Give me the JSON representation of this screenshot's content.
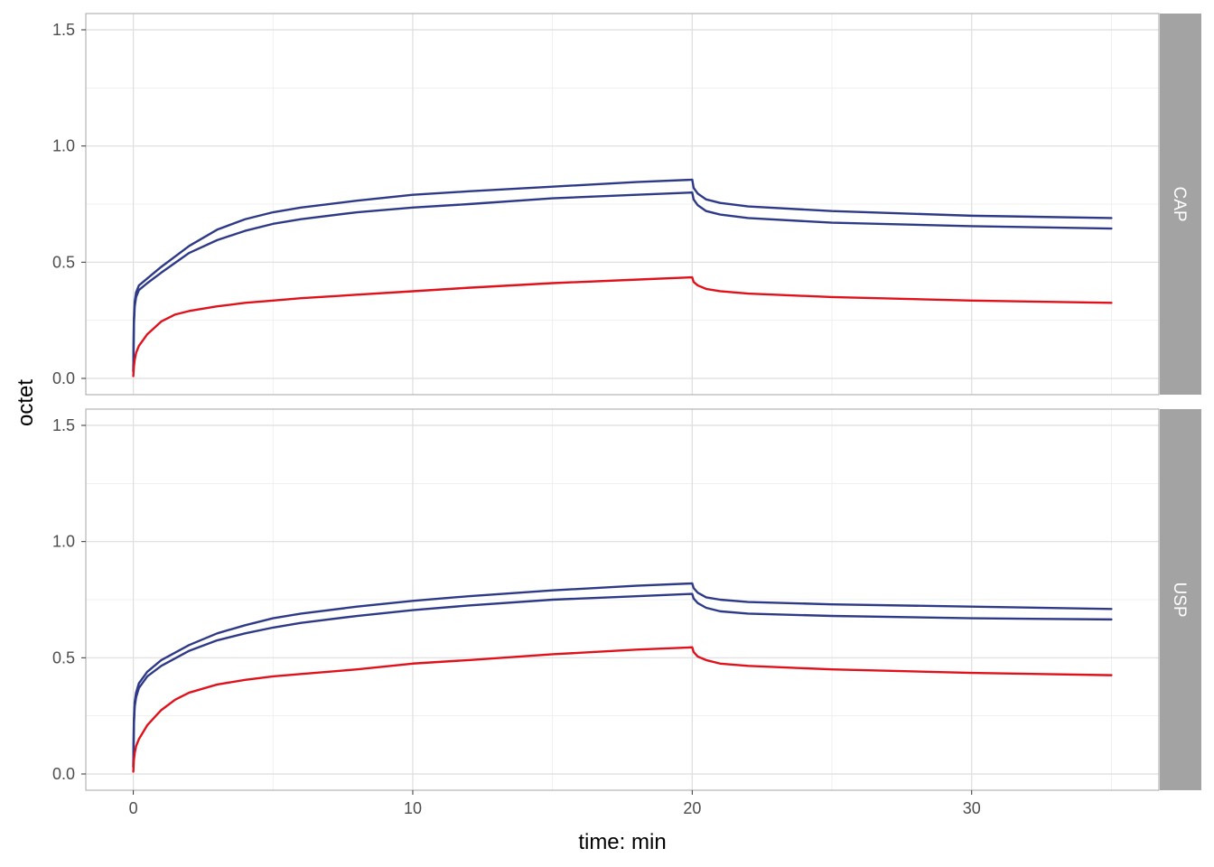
{
  "chart_data": {
    "type": "line",
    "xlabel": "time: min",
    "ylabel": "octet",
    "xlim": [
      -1.7,
      36.7
    ],
    "ylim": [
      -0.07,
      1.57
    ],
    "x_ticks": [
      0,
      10,
      20,
      30
    ],
    "y_ticks": [
      0.0,
      0.5,
      1.0,
      1.5
    ],
    "x_tick_labels": [
      "0",
      "10",
      "20",
      "30"
    ],
    "y_tick_labels": [
      "0.0",
      "0.5",
      "1.0",
      "1.5"
    ],
    "grid": true,
    "colors": {
      "blue": "#2e3a87",
      "red": "#e0111b",
      "strip": "#a3a3a3",
      "panel_border": "#b3b3b3",
      "grid": "#dedede"
    },
    "panels": [
      {
        "strip": "CAP",
        "series": [
          {
            "color": "#2e3a87",
            "values": [
              [
                0,
                0.03
              ],
              [
                0.02,
                0.25
              ],
              [
                0.05,
                0.33
              ],
              [
                0.1,
                0.37
              ],
              [
                0.2,
                0.4
              ],
              [
                0.5,
                0.43
              ],
              [
                1,
                0.48
              ],
              [
                2,
                0.57
              ],
              [
                3,
                0.64
              ],
              [
                4,
                0.685
              ],
              [
                5,
                0.715
              ],
              [
                6,
                0.735
              ],
              [
                8,
                0.765
              ],
              [
                10,
                0.79
              ],
              [
                12,
                0.805
              ],
              [
                15,
                0.825
              ],
              [
                18,
                0.845
              ],
              [
                20,
                0.855
              ],
              [
                20.05,
                0.82
              ],
              [
                20.2,
                0.795
              ],
              [
                20.5,
                0.77
              ],
              [
                21,
                0.755
              ],
              [
                22,
                0.74
              ],
              [
                25,
                0.72
              ],
              [
                30,
                0.7
              ],
              [
                35,
                0.69
              ]
            ]
          },
          {
            "color": "#2e3a87",
            "values": [
              [
                0,
                0.03
              ],
              [
                0.02,
                0.23
              ],
              [
                0.05,
                0.31
              ],
              [
                0.1,
                0.35
              ],
              [
                0.2,
                0.38
              ],
              [
                0.5,
                0.41
              ],
              [
                1,
                0.455
              ],
              [
                2,
                0.54
              ],
              [
                3,
                0.595
              ],
              [
                4,
                0.635
              ],
              [
                5,
                0.665
              ],
              [
                6,
                0.685
              ],
              [
                8,
                0.715
              ],
              [
                10,
                0.735
              ],
              [
                12,
                0.75
              ],
              [
                15,
                0.775
              ],
              [
                18,
                0.79
              ],
              [
                20,
                0.8
              ],
              [
                20.05,
                0.77
              ],
              [
                20.2,
                0.745
              ],
              [
                20.5,
                0.72
              ],
              [
                21,
                0.705
              ],
              [
                22,
                0.69
              ],
              [
                25,
                0.67
              ],
              [
                30,
                0.655
              ],
              [
                35,
                0.645
              ]
            ]
          },
          {
            "color": "#e0111b",
            "values": [
              [
                0,
                0.01
              ],
              [
                0.02,
                0.05
              ],
              [
                0.05,
                0.08
              ],
              [
                0.1,
                0.11
              ],
              [
                0.2,
                0.14
              ],
              [
                0.5,
                0.19
              ],
              [
                1,
                0.245
              ],
              [
                1.5,
                0.275
              ],
              [
                2,
                0.29
              ],
              [
                3,
                0.31
              ],
              [
                4,
                0.325
              ],
              [
                5,
                0.335
              ],
              [
                6,
                0.345
              ],
              [
                8,
                0.36
              ],
              [
                10,
                0.375
              ],
              [
                12,
                0.39
              ],
              [
                15,
                0.41
              ],
              [
                18,
                0.425
              ],
              [
                20,
                0.435
              ],
              [
                20.05,
                0.415
              ],
              [
                20.2,
                0.4
              ],
              [
                20.5,
                0.385
              ],
              [
                21,
                0.375
              ],
              [
                22,
                0.365
              ],
              [
                25,
                0.35
              ],
              [
                30,
                0.335
              ],
              [
                35,
                0.325
              ]
            ]
          }
        ]
      },
      {
        "strip": "USP",
        "series": [
          {
            "color": "#2e3a87",
            "values": [
              [
                0,
                0.03
              ],
              [
                0.02,
                0.23
              ],
              [
                0.05,
                0.31
              ],
              [
                0.1,
                0.35
              ],
              [
                0.2,
                0.39
              ],
              [
                0.5,
                0.44
              ],
              [
                1,
                0.49
              ],
              [
                2,
                0.555
              ],
              [
                3,
                0.605
              ],
              [
                4,
                0.64
              ],
              [
                5,
                0.67
              ],
              [
                6,
                0.69
              ],
              [
                8,
                0.72
              ],
              [
                10,
                0.745
              ],
              [
                12,
                0.765
              ],
              [
                15,
                0.79
              ],
              [
                18,
                0.81
              ],
              [
                20,
                0.82
              ],
              [
                20.05,
                0.8
              ],
              [
                20.2,
                0.78
              ],
              [
                20.5,
                0.76
              ],
              [
                21,
                0.75
              ],
              [
                22,
                0.74
              ],
              [
                25,
                0.73
              ],
              [
                30,
                0.72
              ],
              [
                35,
                0.71
              ]
            ]
          },
          {
            "color": "#2e3a87",
            "values": [
              [
                0,
                0.03
              ],
              [
                0.02,
                0.21
              ],
              [
                0.05,
                0.29
              ],
              [
                0.1,
                0.33
              ],
              [
                0.2,
                0.37
              ],
              [
                0.5,
                0.42
              ],
              [
                1,
                0.465
              ],
              [
                2,
                0.53
              ],
              [
                3,
                0.575
              ],
              [
                4,
                0.605
              ],
              [
                5,
                0.63
              ],
              [
                6,
                0.65
              ],
              [
                8,
                0.68
              ],
              [
                10,
                0.705
              ],
              [
                12,
                0.725
              ],
              [
                15,
                0.75
              ],
              [
                18,
                0.765
              ],
              [
                20,
                0.775
              ],
              [
                20.05,
                0.755
              ],
              [
                20.2,
                0.735
              ],
              [
                20.5,
                0.715
              ],
              [
                21,
                0.7
              ],
              [
                22,
                0.69
              ],
              [
                25,
                0.68
              ],
              [
                30,
                0.67
              ],
              [
                35,
                0.665
              ]
            ]
          },
          {
            "color": "#e0111b",
            "values": [
              [
                0,
                0.01
              ],
              [
                0.02,
                0.06
              ],
              [
                0.05,
                0.09
              ],
              [
                0.1,
                0.12
              ],
              [
                0.2,
                0.15
              ],
              [
                0.5,
                0.21
              ],
              [
                1,
                0.275
              ],
              [
                1.5,
                0.32
              ],
              [
                2,
                0.35
              ],
              [
                3,
                0.385
              ],
              [
                4,
                0.405
              ],
              [
                5,
                0.42
              ],
              [
                6,
                0.43
              ],
              [
                8,
                0.45
              ],
              [
                10,
                0.475
              ],
              [
                12,
                0.49
              ],
              [
                15,
                0.515
              ],
              [
                18,
                0.535
              ],
              [
                20,
                0.545
              ],
              [
                20.05,
                0.525
              ],
              [
                20.2,
                0.505
              ],
              [
                20.5,
                0.49
              ],
              [
                21,
                0.475
              ],
              [
                22,
                0.465
              ],
              [
                25,
                0.45
              ],
              [
                30,
                0.435
              ],
              [
                35,
                0.425
              ]
            ]
          }
        ]
      }
    ]
  }
}
